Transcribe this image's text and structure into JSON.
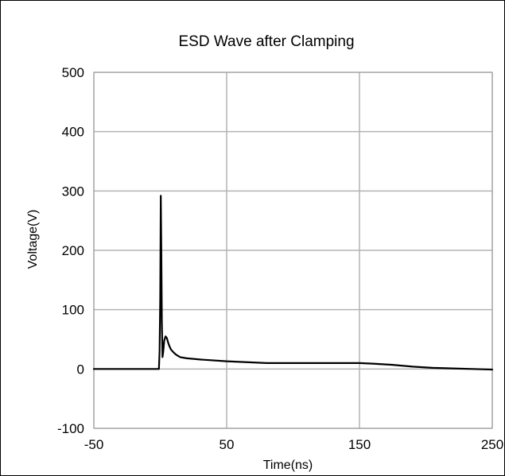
{
  "chart_data": {
    "type": "line",
    "title": "ESD Wave after Clamping",
    "xlabel": "Time(ns)",
    "ylabel": "Voltage(V)",
    "xlim": [
      -50,
      250
    ],
    "ylim": [
      -100,
      500
    ],
    "x_ticks": [
      -50,
      50,
      150,
      250
    ],
    "y_ticks": [
      -100,
      0,
      100,
      200,
      300,
      400,
      500
    ],
    "x_tick_labels": [
      "-50",
      "50",
      "150",
      "250"
    ],
    "y_tick_labels": [
      "-100",
      "0",
      "100",
      "200",
      "300",
      "400",
      "500"
    ],
    "grid": true,
    "legend": "none",
    "line_color": "#000000",
    "grid_color": "#b3b3b3",
    "series": [
      {
        "x": [
          -50,
          -2,
          -1,
          -0.5,
          0,
          0.4,
          0.8,
          1.2,
          1.7,
          2.2,
          3,
          4,
          5,
          6,
          7,
          8,
          10,
          12,
          15,
          20,
          30,
          50,
          80,
          120,
          150,
          160,
          175,
          190,
          205,
          220,
          235,
          250
        ],
        "y": [
          0,
          0,
          0,
          30,
          120,
          292,
          200,
          80,
          20,
          28,
          48,
          55,
          52,
          44,
          38,
          33,
          28,
          24,
          20,
          18,
          16,
          13,
          10,
          10,
          10,
          9,
          7,
          4,
          2,
          1,
          0,
          -1
        ]
      }
    ]
  }
}
